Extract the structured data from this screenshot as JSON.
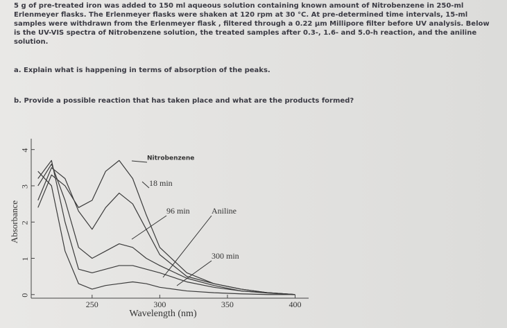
{
  "text": {
    "paragraph": "5 g of pre-treated iron was added to 150 ml aqueous solution containing known amount of Nitrobenzene in 250-ml Erlenmeyer flasks. The Erlenmeyer flasks were shaken at 120 rpm at 30 °C. At pre-determined time intervals, 15-ml samples were withdrawn from the Erlenmeyer flask , filtered through a 0.22 µm Millipore filter before UV analysis. Below is the UV-VIS spectra of Nitrobenzene solution, the treated samples after 0.3-, 1.6- and 5.0-h reaction, and the aniline solution.",
    "question_a": "a. Explain what is happening in terms of absorption of the peaks.",
    "question_b": "b. Provide a possible reaction that has taken place and what are the products formed?"
  },
  "chart_data": {
    "type": "line",
    "x_label": "Wavelength (nm)",
    "y_label": "Absorbance",
    "x": [
      210,
      220,
      230,
      240,
      250,
      260,
      270,
      280,
      290,
      300,
      320,
      340,
      360,
      380,
      400
    ],
    "series": [
      {
        "name": "Nitrobenzene",
        "color": "#3a3a3a",
        "values": [
          2.4,
          3.3,
          3.0,
          2.4,
          2.6,
          3.4,
          3.7,
          3.2,
          2.2,
          1.3,
          0.6,
          0.3,
          0.15,
          0.05,
          0
        ]
      },
      {
        "name": "18 min",
        "color": "#3a3a3a",
        "values": [
          2.6,
          3.5,
          3.2,
          2.3,
          1.8,
          2.4,
          2.8,
          2.5,
          1.8,
          1.1,
          0.5,
          0.3,
          0.15,
          0.05,
          0
        ]
      },
      {
        "name": "96 min",
        "color": "#3a3a3a",
        "values": [
          3.0,
          3.6,
          2.6,
          1.3,
          1.0,
          1.2,
          1.4,
          1.3,
          1.0,
          0.8,
          0.45,
          0.25,
          0.1,
          0.05,
          0
        ]
      },
      {
        "name": "Aniline",
        "color": "#3a3a3a",
        "values": [
          3.4,
          3.0,
          1.2,
          0.3,
          0.15,
          0.25,
          0.3,
          0.35,
          0.3,
          0.2,
          0.1,
          0.05,
          0.02,
          0,
          0
        ]
      },
      {
        "name": "300 min",
        "color": "#3a3a3a",
        "values": [
          3.2,
          3.7,
          2.0,
          0.7,
          0.6,
          0.7,
          0.8,
          0.8,
          0.7,
          0.6,
          0.35,
          0.2,
          0.1,
          0.04,
          0
        ]
      }
    ],
    "xlim": [
      205,
      410
    ],
    "ylim": [
      -0.1,
      4.3
    ],
    "xticks": [
      250,
      300,
      350,
      400
    ],
    "yticks": [
      0,
      1,
      2,
      3,
      4
    ]
  }
}
